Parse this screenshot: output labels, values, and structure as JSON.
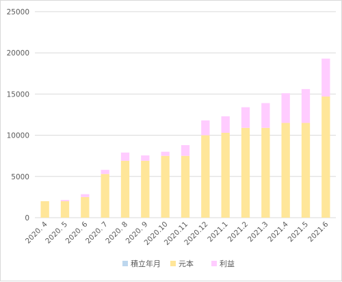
{
  "chart_data": {
    "type": "bar",
    "stacked": true,
    "categories": [
      "2020. 4",
      "2020. 5",
      "2020. 6",
      "2020. 7",
      "2020. 8",
      "2020. 9",
      "2020.10",
      "2020.11",
      "2020.12",
      "2021.1",
      "2021.2",
      "2021.3",
      "2021.4",
      "2021.5",
      "2021.6"
    ],
    "series": [
      {
        "name": "積立年月",
        "color": "#bdd7ee",
        "values": [
          0,
          0,
          0,
          0,
          0,
          0,
          0,
          0,
          0,
          0,
          0,
          0,
          0,
          0,
          0
        ]
      },
      {
        "name": "元本",
        "color": "#ffe699",
        "values": [
          2000,
          2000,
          2500,
          5300,
          6900,
          6900,
          7500,
          7500,
          10000,
          10300,
          10900,
          10900,
          11500,
          11500,
          14700
        ]
      },
      {
        "name": "利益",
        "color": "#ffccff",
        "values": [
          0,
          150,
          350,
          500,
          1000,
          650,
          500,
          1300,
          1800,
          2000,
          2500,
          3000,
          3600,
          4100,
          4600
        ]
      }
    ],
    "ylim": [
      0,
      25000
    ],
    "yticks": [
      0,
      5000,
      10000,
      15000,
      20000,
      25000
    ],
    "grid": true,
    "legend": "bottom",
    "title": "",
    "xlabel": "",
    "ylabel": ""
  }
}
